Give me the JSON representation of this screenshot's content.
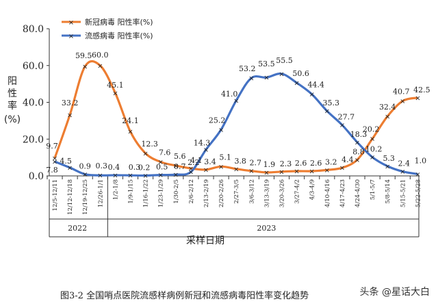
{
  "chart_data": {
    "type": "line",
    "ylabel": "阳性率(%)",
    "xlabel": "采样日期",
    "ylim": [
      0,
      80
    ],
    "yticks": [
      "0.0",
      "20.0",
      "40.0",
      "60.0",
      "80.0"
    ],
    "grid": false,
    "legend_position": "top-left",
    "categories": [
      "12/5-12/11",
      "12/12-12/18",
      "12/19-12/25",
      "12/26-1/1",
      "1/2-1/8",
      "1/9-1/15",
      "1/16-1/22",
      "1/23-1/29",
      "1/30-2/5",
      "2/6-2/12",
      "2/13-2/19",
      "2/20-2/26",
      "2/27-3/5",
      "3/6-3/12",
      "3/13-3/19",
      "3/20-3/26",
      "3/27-4/2",
      "4/3-4/9",
      "4/10-4/16",
      "4/17-4/23",
      "4/24-4/30",
      "5/1-5/7",
      "5/8-5/14",
      "5/15-5/21",
      "5/22-5/28"
    ],
    "years": [
      {
        "label": "2022",
        "from": 0,
        "to": 3
      },
      {
        "label": "2023",
        "from": 4,
        "to": 24
      }
    ],
    "series": [
      {
        "name": "新冠病毒 阳性率(%)",
        "color": "#ED7D31",
        "values": [
          9.7,
          33.2,
          59.5,
          60.0,
          45.1,
          24.1,
          12.3,
          7.6,
          5.6,
          4.1,
          3.4,
          5.1,
          3.8,
          2.7,
          1.9,
          2.3,
          2.6,
          2.6,
          3.2,
          4.4,
          8.8,
          20.2,
          32.4,
          40.7,
          42.5
        ]
      },
      {
        "name": "流感病毒 阳性率(%)",
        "color": "#4472C4",
        "values": [
          7.8,
          4.5,
          0.9,
          0.3,
          0.4,
          0.3,
          0.2,
          0.5,
          0.7,
          2.2,
          14.3,
          25.2,
          41.0,
          53.2,
          53.5,
          55.5,
          50.6,
          44.4,
          35.3,
          27.7,
          18.3,
          10.2,
          5.3,
          2.4,
          1.0
        ]
      }
    ],
    "caption": "图3-2 全国哨点医院流感样病例新冠和流感病毒阳性率变化趋势"
  },
  "watermark": "头条 @星话大白"
}
